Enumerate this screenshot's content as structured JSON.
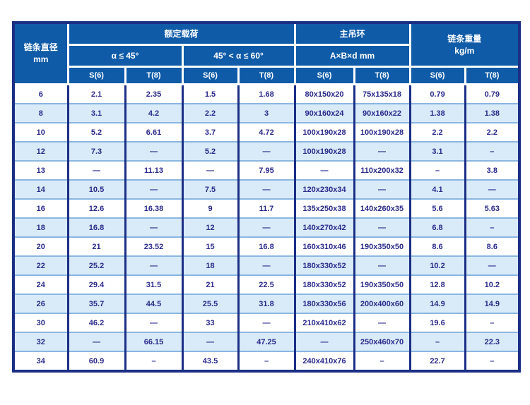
{
  "colors": {
    "header_bg": "#0f5ba8",
    "header_text": "#ffffff",
    "grid_dark_navy": "#1b2f85",
    "grid_light_blue": "#8ab6e1",
    "row_alt_bg": "#d9eaf8",
    "row_bg": "#ffffff",
    "data_text": "#2b2b8c",
    "page_bg": "#ffffff"
  },
  "chart_data": {
    "type": "table",
    "title": "",
    "header": {
      "diameter_line1": "链条直径",
      "diameter_line2": "mm",
      "rated_load": "额定载荷",
      "angle_le45": "α ≤ 45°",
      "angle_45_60": "45° < α ≤ 60°",
      "main_ring": "主吊环",
      "abd_mm": "A×B×d  mm",
      "chain_weight_line1": "链条重量",
      "chain_weight_line2": "kg/m"
    },
    "subheaders": [
      "S(6)",
      "T(8)",
      "S(6)",
      "T(8)",
      "S(6)",
      "T(8)",
      "S(6)",
      "T(8)"
    ],
    "column_groups": [
      {
        "label": "链条直径 mm",
        "span": 1
      },
      {
        "label": "额定载荷 / α ≤ 45°",
        "span": 2
      },
      {
        "label": "额定载荷 / 45° < α ≤ 60°",
        "span": 2
      },
      {
        "label": "主吊环 A×B×d mm",
        "span": 2
      },
      {
        "label": "链条重量 kg/m",
        "span": 2
      }
    ],
    "rows": [
      [
        "6",
        "2.1",
        "2.35",
        "1.5",
        "1.68",
        "80x150x20",
        "75x135x18",
        "0.79",
        "0.79"
      ],
      [
        "8",
        "3.1",
        "4.2",
        "2.2",
        "3",
        "90x160x24",
        "90x160x22",
        "1.38",
        "1.38"
      ],
      [
        "10",
        "5.2",
        "6.61",
        "3.7",
        "4.72",
        "100x190x28",
        "100x190x28",
        "2.2",
        "2.2"
      ],
      [
        "12",
        "7.3",
        "—",
        "5.2",
        "—",
        "100x190x28",
        "—",
        "3.1",
        "–"
      ],
      [
        "13",
        "—",
        "11.13",
        "—",
        "7.95",
        "—",
        "110x200x32",
        "–",
        "3.8"
      ],
      [
        "14",
        "10.5",
        "—",
        "7.5",
        "—",
        "120x230x34",
        "—",
        "4.1",
        "—"
      ],
      [
        "16",
        "12.6",
        "16.38",
        "9",
        "11.7",
        "135x250x38",
        "140x260x35",
        "5.6",
        "5.63"
      ],
      [
        "18",
        "16.8",
        "—",
        "12",
        "—",
        "140x270x42",
        "—",
        "6.8",
        "–"
      ],
      [
        "20",
        "21",
        "23.52",
        "15",
        "16.8",
        "160x310x46",
        "190x350x50",
        "8.6",
        "8.6"
      ],
      [
        "22",
        "25.2",
        "—",
        "18",
        "—",
        "180x330x52",
        "—",
        "10.2",
        "—"
      ],
      [
        "24",
        "29.4",
        "31.5",
        "21",
        "22.5",
        "180x330x52",
        "190x350x50",
        "12.8",
        "10.2"
      ],
      [
        "26",
        "35.7",
        "44.5",
        "25.5",
        "31.8",
        "180x330x56",
        "200x400x60",
        "14.9",
        "14.9"
      ],
      [
        "30",
        "46.2",
        "—",
        "33",
        "—",
        "210x410x62",
        "—",
        "19.6",
        "–"
      ],
      [
        "32",
        "—",
        "66.15",
        "—",
        "47.25",
        "—",
        "250x460x70",
        "–",
        "22.3"
      ],
      [
        "34",
        "60.9",
        "–",
        "43.5",
        "–",
        "240x410x76",
        "–",
        "22.7",
        "–"
      ]
    ]
  }
}
